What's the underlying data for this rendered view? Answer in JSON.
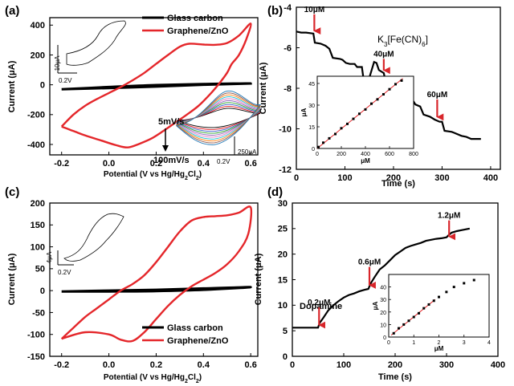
{
  "colors": {
    "red": "#e4262a",
    "black": "#000000",
    "arrow": "#d8262b"
  },
  "chart_data": [
    {
      "panel": "(a)",
      "type": "line",
      "xlabel_main": "Potential (V vs Hg/Hg",
      "xlabel_sub1": "2",
      "xlabel_mid": "Cl",
      "xlabel_sub2": "2",
      "xlabel_end": ")",
      "ylabel": "Current (μA)",
      "xlim": [
        -0.25,
        0.63
      ],
      "ylim": [
        -470,
        450
      ],
      "xticks": [
        -0.2,
        0.0,
        0.2,
        0.4,
        0.6
      ],
      "xtick_labels": [
        "-0.2",
        "0.0",
        "0.2",
        "0.4",
        "0.6"
      ],
      "yticks": [
        -400,
        -200,
        0,
        200,
        400
      ],
      "ytick_labels": [
        "-400",
        "-200",
        "0",
        "200",
        "400"
      ],
      "legend": [
        "Glass carbon",
        "Graphene/ZnO"
      ],
      "legend_position": "top-right",
      "series": [
        {
          "name": "Glass carbon",
          "color": "#000000",
          "forward": [
            [
              -0.2,
              -30
            ],
            [
              0.0,
              -15
            ],
            [
              0.2,
              -2
            ],
            [
              0.4,
              5
            ],
            [
              0.6,
              9
            ]
          ],
          "backward": [
            [
              0.6,
              9
            ],
            [
              0.4,
              0
            ],
            [
              0.2,
              -12
            ],
            [
              0.0,
              -22
            ],
            [
              -0.2,
              -30
            ]
          ]
        },
        {
          "name": "Graphene/ZnO",
          "color": "#e4262a",
          "forward": [
            [
              -0.2,
              -280
            ],
            [
              -0.15,
              -200
            ],
            [
              -0.1,
              -140
            ],
            [
              -0.05,
              -95
            ],
            [
              0.0,
              -55
            ],
            [
              0.05,
              -15
            ],
            [
              0.1,
              30
            ],
            [
              0.15,
              80
            ],
            [
              0.2,
              140
            ],
            [
              0.25,
              200
            ],
            [
              0.3,
              255
            ],
            [
              0.34,
              275
            ],
            [
              0.4,
              270
            ],
            [
              0.45,
              268
            ],
            [
              0.5,
              280
            ],
            [
              0.55,
              330
            ],
            [
              0.6,
              410
            ]
          ],
          "backward": [
            [
              0.6,
              410
            ],
            [
              0.58,
              300
            ],
            [
              0.55,
              200
            ],
            [
              0.52,
              140
            ],
            [
              0.5,
              80
            ],
            [
              0.47,
              15
            ],
            [
              0.43,
              -60
            ],
            [
              0.38,
              -140
            ],
            [
              0.33,
              -200
            ],
            [
              0.28,
              -255
            ],
            [
              0.23,
              -310
            ],
            [
              0.18,
              -360
            ],
            [
              0.13,
              -395
            ],
            [
              0.08,
              -420
            ],
            [
              0.03,
              -405
            ],
            [
              -0.03,
              -375
            ],
            [
              -0.1,
              -340
            ],
            [
              -0.15,
              -310
            ],
            [
              -0.2,
              -280
            ]
          ]
        }
      ],
      "inset_scale_y": "10μA",
      "inset_scale_x": "0.2V",
      "inset2_scale_y": "250μA",
      "inset2_scale_x": "0.2V",
      "annotation_top": "5mV/s",
      "annotation_bottom": "100mV/s",
      "scan_rate_colors": [
        "#000000",
        "#e41a1c",
        "#3a5fcd",
        "#2ca02c",
        "#9467bd",
        "#e377c2",
        "#17becf",
        "#ff7f0e",
        "#8c564b",
        "#1f77b4"
      ]
    },
    {
      "panel": "(b)",
      "type": "line",
      "xlabel": "Time (s)",
      "ylabel": "Current (μA)",
      "xlim": [
        0,
        420
      ],
      "ylim": [
        -12,
        -4
      ],
      "xticks": [
        0,
        100,
        200,
        300,
        400
      ],
      "xtick_labels": [
        "0",
        "100",
        "200",
        "300",
        "400"
      ],
      "yticks": [
        -12,
        -10,
        -8,
        -6,
        -4
      ],
      "ytick_labels": [
        "-12",
        "-10",
        "-8",
        "-6",
        "-4"
      ],
      "label_base": "K",
      "label_sub1": "3",
      "label_mid": "[Fe(CN)",
      "label_sub2": "6",
      "label_end": "]",
      "series": [
        {
          "name": "",
          "color": "#000000",
          "points": [
            [
              0,
              -5.2
            ],
            [
              10,
              -5.25
            ],
            [
              20,
              -5.25
            ],
            [
              35,
              -5.3
            ],
            [
              38,
              -5.75
            ],
            [
              50,
              -5.8
            ],
            [
              60,
              -5.9
            ],
            [
              68,
              -6.05
            ],
            [
              75,
              -6.5
            ],
            [
              90,
              -6.55
            ],
            [
              95,
              -6.6
            ],
            [
              102,
              -6.75
            ],
            [
              110,
              -6.8
            ],
            [
              120,
              -6.8
            ],
            [
              125,
              -6.95
            ],
            [
              135,
              -6.95
            ],
            [
              138,
              -7.5
            ],
            [
              150,
              -7.5
            ],
            [
              160,
              -6.7
            ],
            [
              165,
              -6.75
            ],
            [
              170,
              -7.1
            ],
            [
              180,
              -7.25
            ],
            [
              185,
              -7.85
            ],
            [
              200,
              -7.9
            ],
            [
              205,
              -8.05
            ],
            [
              215,
              -8.5
            ],
            [
              230,
              -8.55
            ],
            [
              240,
              -8.6
            ],
            [
              245,
              -8.8
            ],
            [
              255,
              -8.9
            ],
            [
              262,
              -9.3
            ],
            [
              275,
              -9.4
            ],
            [
              285,
              -9.55
            ],
            [
              295,
              -9.65
            ],
            [
              300,
              -9.65
            ],
            [
              305,
              -10.1
            ],
            [
              320,
              -10.15
            ],
            [
              325,
              -10.2
            ],
            [
              340,
              -10.35
            ],
            [
              350,
              -10.4
            ],
            [
              360,
              -10.5
            ],
            [
              370,
              -10.5
            ],
            [
              380,
              -10.5
            ]
          ]
        }
      ],
      "arrows": [
        {
          "label": "10μM",
          "x": 37,
          "y_top": -4.35,
          "y_tip": -5.25
        },
        {
          "label": "40μM",
          "x": 180,
          "y_top": -6.55,
          "y_tip": -7.2
        },
        {
          "label": "60μM",
          "x": 290,
          "y_top": -8.55,
          "y_tip": -9.5
        }
      ],
      "inset": {
        "xlabel": "μM",
        "ylabel": "μA",
        "xlim": [
          0,
          800
        ],
        "ylim": [
          0,
          50
        ],
        "xticks": [
          0,
          200,
          400,
          600,
          800
        ],
        "xtick_labels": [
          "0",
          "200",
          "400",
          "600",
          "800"
        ],
        "yticks": [
          0,
          15,
          30,
          45
        ],
        "ytick_labels": [
          "0",
          "15",
          "30",
          "45"
        ],
        "points": [
          [
            10,
            1
          ],
          [
            50,
            4
          ],
          [
            100,
            7
          ],
          [
            150,
            10
          ],
          [
            200,
            14
          ],
          [
            250,
            17
          ],
          [
            300,
            20.5
          ],
          [
            350,
            24
          ],
          [
            400,
            27
          ],
          [
            450,
            31
          ],
          [
            500,
            34
          ],
          [
            550,
            37.5
          ],
          [
            600,
            41
          ],
          [
            650,
            44.5
          ],
          [
            700,
            47
          ]
        ],
        "fit": [
          [
            0,
            0
          ],
          [
            710,
            48.5
          ]
        ]
      }
    },
    {
      "panel": "(c)",
      "type": "line",
      "xlabel_main": "Potential (V vs Hg/Hg",
      "xlabel_sub1": "2",
      "xlabel_mid": "Cl",
      "xlabel_sub2": "2",
      "xlabel_end": ")",
      "ylabel": "Current (μA)",
      "xlim": [
        -0.25,
        0.63
      ],
      "ylim": [
        -150,
        200
      ],
      "xticks": [
        -0.2,
        0.0,
        0.2,
        0.4,
        0.6
      ],
      "xtick_labels": [
        "-0.2",
        "0.0",
        "0.2",
        "0.4",
        "0.6"
      ],
      "yticks": [
        -150,
        -100,
        -50,
        0,
        50,
        100,
        150,
        200
      ],
      "ytick_labels": [
        "-150",
        "-100",
        "-50",
        "0",
        "50",
        "100",
        "150",
        "200"
      ],
      "legend": [
        "Glass carbon",
        "Graphene/ZnO"
      ],
      "legend_position": "bottom-right",
      "series": [
        {
          "name": "Glass carbon",
          "color": "#000000",
          "forward": [
            [
              -0.2,
              -2
            ],
            [
              0.0,
              0
            ],
            [
              0.2,
              2
            ],
            [
              0.4,
              5
            ],
            [
              0.6,
              8
            ]
          ],
          "backward": [
            [
              0.6,
              8
            ],
            [
              0.4,
              2
            ],
            [
              0.2,
              -1
            ],
            [
              0.0,
              -2
            ],
            [
              -0.2,
              -2
            ]
          ]
        },
        {
          "name": "Graphene/ZnO",
          "color": "#e4262a",
          "forward": [
            [
              -0.2,
              -110
            ],
            [
              -0.15,
              -85
            ],
            [
              -0.1,
              -60
            ],
            [
              -0.05,
              -40
            ],
            [
              0.0,
              -20
            ],
            [
              0.05,
              0
            ],
            [
              0.1,
              15
            ],
            [
              0.15,
              35
            ],
            [
              0.2,
              65
            ],
            [
              0.25,
              100
            ],
            [
              0.3,
              135
            ],
            [
              0.35,
              160
            ],
            [
              0.4,
              168
            ],
            [
              0.45,
              170
            ],
            [
              0.5,
              172
            ],
            [
              0.55,
              178
            ],
            [
              0.6,
              190
            ]
          ],
          "backward": [
            [
              0.6,
              190
            ],
            [
              0.59,
              130
            ],
            [
              0.55,
              90
            ],
            [
              0.5,
              60
            ],
            [
              0.45,
              40
            ],
            [
              0.4,
              25
            ],
            [
              0.35,
              10
            ],
            [
              0.3,
              -10
            ],
            [
              0.25,
              -35
            ],
            [
              0.2,
              -65
            ],
            [
              0.15,
              -95
            ],
            [
              0.1,
              -115
            ],
            [
              0.05,
              -112
            ],
            [
              0.0,
              -100
            ],
            [
              -0.1,
              -95
            ],
            [
              -0.2,
              -110
            ]
          ]
        }
      ],
      "inset_scale_y": "4μA",
      "inset_scale_x": "0.2V"
    },
    {
      "panel": "(d)",
      "type": "line",
      "xlabel": "Time (s)",
      "ylabel": "Current (μA)",
      "xlim": [
        0,
        400
      ],
      "ylim": [
        0,
        30
      ],
      "xticks": [
        0,
        100,
        200,
        300,
        400
      ],
      "xtick_labels": [
        "0",
        "100",
        "200",
        "300",
        "400"
      ],
      "yticks": [
        0,
        5,
        10,
        15,
        20,
        25,
        30
      ],
      "ytick_labels": [
        "0",
        "5",
        "10",
        "15",
        "20",
        "25",
        "30"
      ],
      "analyte_label": "Dopamine",
      "series": [
        {
          "name": "",
          "color": "#000000",
          "points": [
            [
              0,
              5.6
            ],
            [
              20,
              5.6
            ],
            [
              40,
              5.6
            ],
            [
              50,
              5.6
            ],
            [
              53,
              6.5
            ],
            [
              60,
              7.5
            ],
            [
              70,
              9
            ],
            [
              80,
              10
            ],
            [
              90,
              10.8
            ],
            [
              100,
              11.5
            ],
            [
              110,
              12
            ],
            [
              120,
              12.3
            ],
            [
              130,
              12.7
            ],
            [
              140,
              13
            ],
            [
              148,
              13.2
            ],
            [
              152,
              14.2
            ],
            [
              160,
              15.5
            ],
            [
              170,
              17
            ],
            [
              180,
              17.8
            ],
            [
              190,
              18.8
            ],
            [
              200,
              19.8
            ],
            [
              210,
              20.5
            ],
            [
              220,
              21.2
            ],
            [
              230,
              21.6
            ],
            [
              240,
              21.9
            ],
            [
              250,
              22.2
            ],
            [
              260,
              22.6
            ],
            [
              270,
              22.8
            ],
            [
              280,
              23
            ],
            [
              290,
              23.1
            ],
            [
              300,
              23.3
            ],
            [
              305,
              23.8
            ],
            [
              310,
              24.2
            ],
            [
              320,
              24.5
            ],
            [
              330,
              24.7
            ],
            [
              345,
              25
            ]
          ]
        }
      ],
      "arrows": [
        {
          "label": "0.2μM",
          "x": 52,
          "y_top": 9.6,
          "y_tip": 5.8
        },
        {
          "label": "0.6μM",
          "x": 150,
          "y_top": 17.5,
          "y_tip": 13.6
        },
        {
          "label": "1.2μM",
          "x": 305,
          "y_top": 26.6,
          "y_tip": 23.1
        }
      ],
      "inset": {
        "xlabel": "μM",
        "ylabel": "μA",
        "xlim": [
          0,
          4
        ],
        "ylim": [
          0,
          50
        ],
        "xticks": [
          0,
          1,
          2,
          3,
          4
        ],
        "xtick_labels": [
          "0",
          "1",
          "2",
          "3",
          "4"
        ],
        "yticks": [
          0,
          10,
          20,
          30,
          40
        ],
        "ytick_labels": [
          "0",
          "10",
          "20",
          "30",
          "40"
        ],
        "points": [
          [
            0.2,
            3
          ],
          [
            0.4,
            7
          ],
          [
            0.6,
            10
          ],
          [
            0.8,
            13
          ],
          [
            1.0,
            16
          ],
          [
            1.2,
            19
          ],
          [
            1.4,
            23
          ],
          [
            1.6,
            26
          ],
          [
            1.8,
            29
          ],
          [
            2.0,
            32
          ],
          [
            2.3,
            36
          ],
          [
            2.6,
            40
          ],
          [
            3.0,
            43
          ],
          [
            3.4,
            45.5
          ]
        ],
        "fit": [
          [
            0.1,
            1.5
          ],
          [
            1.85,
            30
          ]
        ]
      }
    }
  ]
}
